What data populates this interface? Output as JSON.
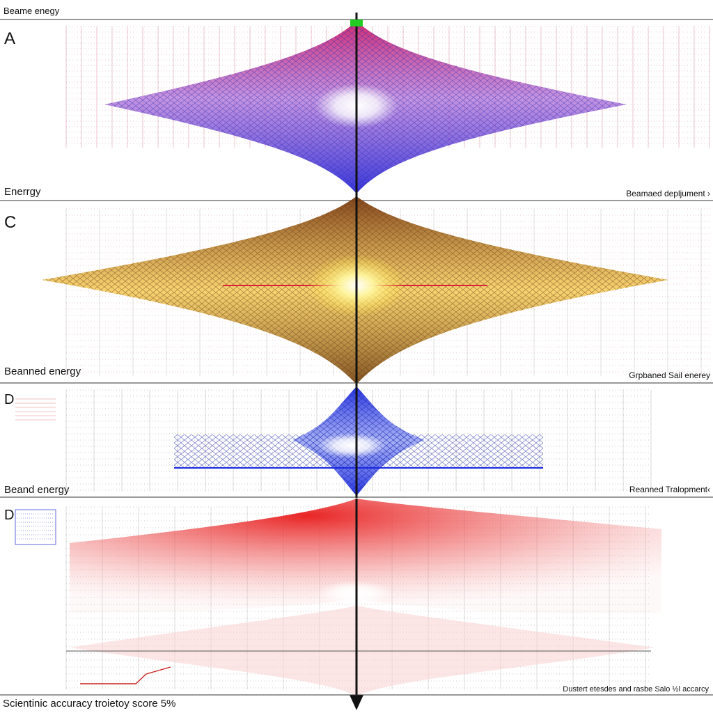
{
  "top_label": "Beame enegy",
  "bottom_left_label": "Scientinic accuracy  troietoy score 5%",
  "bottom_right_label": "Dustert etesdes and rasbe Salo ½l accarcy",
  "colors": {
    "panel_a_top": "#d0206a",
    "panel_a_bottom": "#2a2ad8",
    "panel_c_top": "#8a4a18",
    "panel_c_mid": "#f5c542",
    "panel_d1": "#1a28e0",
    "panel_d2": "#e81a1a",
    "marker": "#22cc22",
    "axis": "#111111"
  },
  "panels": [
    {
      "letter": "A",
      "caption_left": "Enerrgy",
      "caption_right": "Beamaed depljument ›"
    },
    {
      "letter": "C",
      "caption_left": "Beanned energy",
      "caption_right": "Grpbaned Sail enerey"
    },
    {
      "letter": "D",
      "caption_left": "Beand energy",
      "caption_right": "Reanned Tralopment‹"
    },
    {
      "letter": "D",
      "caption_left": "",
      "caption_right": ""
    }
  ]
}
